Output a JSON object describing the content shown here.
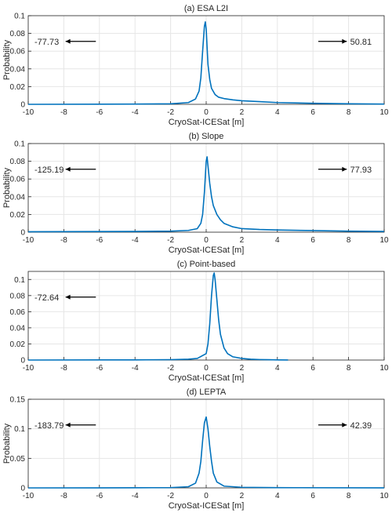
{
  "chart_data": [
    {
      "type": "line",
      "title": "(a) ESA L2I",
      "xlabel": "CryoSat-ICESat [m]",
      "ylabel": "Probability",
      "xlim": [
        -10,
        10
      ],
      "ylim": [
        0,
        0.1
      ],
      "xticks": [
        -10,
        -8,
        -6,
        -4,
        -2,
        0,
        2,
        4,
        6,
        8,
        10
      ],
      "yticks": [
        0,
        0.02,
        0.04,
        0.06,
        0.08,
        0.1
      ],
      "ytick_labels": [
        "0",
        "0.02",
        "0.04",
        "0.06",
        "0.08",
        "0.1"
      ],
      "grid": true,
      "color": "#0072BD",
      "left_annotation": "-77.73",
      "right_annotation": "50.81",
      "series": [
        {
          "x": [
            -10,
            -4,
            -2,
            -1,
            -0.6,
            -0.4,
            -0.3,
            -0.2,
            -0.1,
            -0.05,
            0,
            0.05,
            0.1,
            0.2,
            0.3,
            0.5,
            0.7,
            1,
            1.5,
            2,
            3,
            4,
            6,
            8,
            10
          ],
          "y": [
            0,
            0.0003,
            0.0006,
            0.002,
            0.006,
            0.015,
            0.03,
            0.06,
            0.088,
            0.093,
            0.085,
            0.065,
            0.045,
            0.028,
            0.018,
            0.011,
            0.008,
            0.0065,
            0.005,
            0.004,
            0.003,
            0.002,
            0.0012,
            0.0006,
            0.0003
          ]
        }
      ]
    },
    {
      "type": "line",
      "title": "(b) Slope",
      "xlabel": "CryoSat-ICESat [m]",
      "ylabel": "Probability",
      "xlim": [
        -10,
        10
      ],
      "ylim": [
        0,
        0.1
      ],
      "xticks": [
        -10,
        -8,
        -6,
        -4,
        -2,
        0,
        2,
        4,
        6,
        8,
        10
      ],
      "yticks": [
        0,
        0.02,
        0.04,
        0.06,
        0.08,
        0.1
      ],
      "ytick_labels": [
        "0",
        "0.02",
        "0.04",
        "0.06",
        "0.08",
        "0.1"
      ],
      "grid": true,
      "color": "#0072BD",
      "left_annotation": "-125.19",
      "right_annotation": "77.93",
      "series": [
        {
          "x": [
            -10,
            -4,
            -2,
            -1,
            -0.5,
            -0.3,
            -0.2,
            -0.1,
            0,
            0.05,
            0.1,
            0.2,
            0.3,
            0.4,
            0.6,
            0.8,
            1,
            1.5,
            2,
            3,
            4,
            6,
            8,
            10
          ],
          "y": [
            0.0005,
            0.0008,
            0.0012,
            0.002,
            0.004,
            0.01,
            0.02,
            0.045,
            0.08,
            0.085,
            0.075,
            0.055,
            0.04,
            0.03,
            0.02,
            0.014,
            0.01,
            0.006,
            0.004,
            0.003,
            0.0025,
            0.0018,
            0.0012,
            0.0008
          ]
        }
      ]
    },
    {
      "type": "line",
      "title": "(c) Point-based",
      "xlabel": "CryoSat-ICESat [m]",
      "ylabel": "",
      "xlim": [
        -10,
        10
      ],
      "ylim": [
        0,
        0.11
      ],
      "xticks": [
        -10,
        -8,
        -6,
        -4,
        -2,
        0,
        2,
        4,
        6,
        8,
        10
      ],
      "yticks": [
        0,
        0.02,
        0.04,
        0.06,
        0.08,
        0.1
      ],
      "ytick_labels": [
        "0",
        "0.02",
        "0.04",
        "0.06",
        "0.08",
        "0.1"
      ],
      "grid": true,
      "color": "#0072BD",
      "left_annotation": "-72.64",
      "right_annotation": "",
      "series": [
        {
          "x": [
            -10,
            -4,
            -2,
            -1,
            -0.5,
            0,
            0.1,
            0.2,
            0.3,
            0.4,
            0.45,
            0.5,
            0.6,
            0.7,
            0.8,
            1,
            1.2,
            1.5,
            2,
            2.5,
            3,
            3.5,
            4,
            4.6
          ],
          "y": [
            0,
            0.0002,
            0.0005,
            0.001,
            0.002,
            0.008,
            0.02,
            0.045,
            0.08,
            0.105,
            0.108,
            0.1,
            0.075,
            0.05,
            0.032,
            0.015,
            0.008,
            0.004,
            0.002,
            0.001,
            0.0006,
            0.0004,
            0.0002,
            0.0001
          ]
        }
      ]
    },
    {
      "type": "line",
      "title": "(d) LEPTA",
      "xlabel": "CryoSat-ICESat [m]",
      "ylabel": "Probability",
      "xlim": [
        -10,
        10
      ],
      "ylim": [
        0,
        0.15
      ],
      "xticks": [
        -10,
        -8,
        -6,
        -4,
        -2,
        0,
        2,
        4,
        6,
        8,
        10
      ],
      "yticks": [
        0,
        0.05,
        0.1,
        0.15
      ],
      "ytick_labels": [
        "0",
        "0.05",
        "0.1",
        "0.15"
      ],
      "grid": true,
      "color": "#0072BD",
      "left_annotation": "-183.79",
      "right_annotation": "42.39",
      "series": [
        {
          "x": [
            -10,
            -4,
            -2,
            -1,
            -0.6,
            -0.4,
            -0.3,
            -0.2,
            -0.1,
            0,
            0.1,
            0.2,
            0.3,
            0.4,
            0.6,
            1,
            2,
            4,
            10
          ],
          "y": [
            0,
            0.0002,
            0.0005,
            0.002,
            0.008,
            0.025,
            0.045,
            0.08,
            0.11,
            0.12,
            0.1,
            0.07,
            0.045,
            0.025,
            0.01,
            0.003,
            0.001,
            0.0004,
            0.0001
          ]
        }
      ]
    }
  ]
}
